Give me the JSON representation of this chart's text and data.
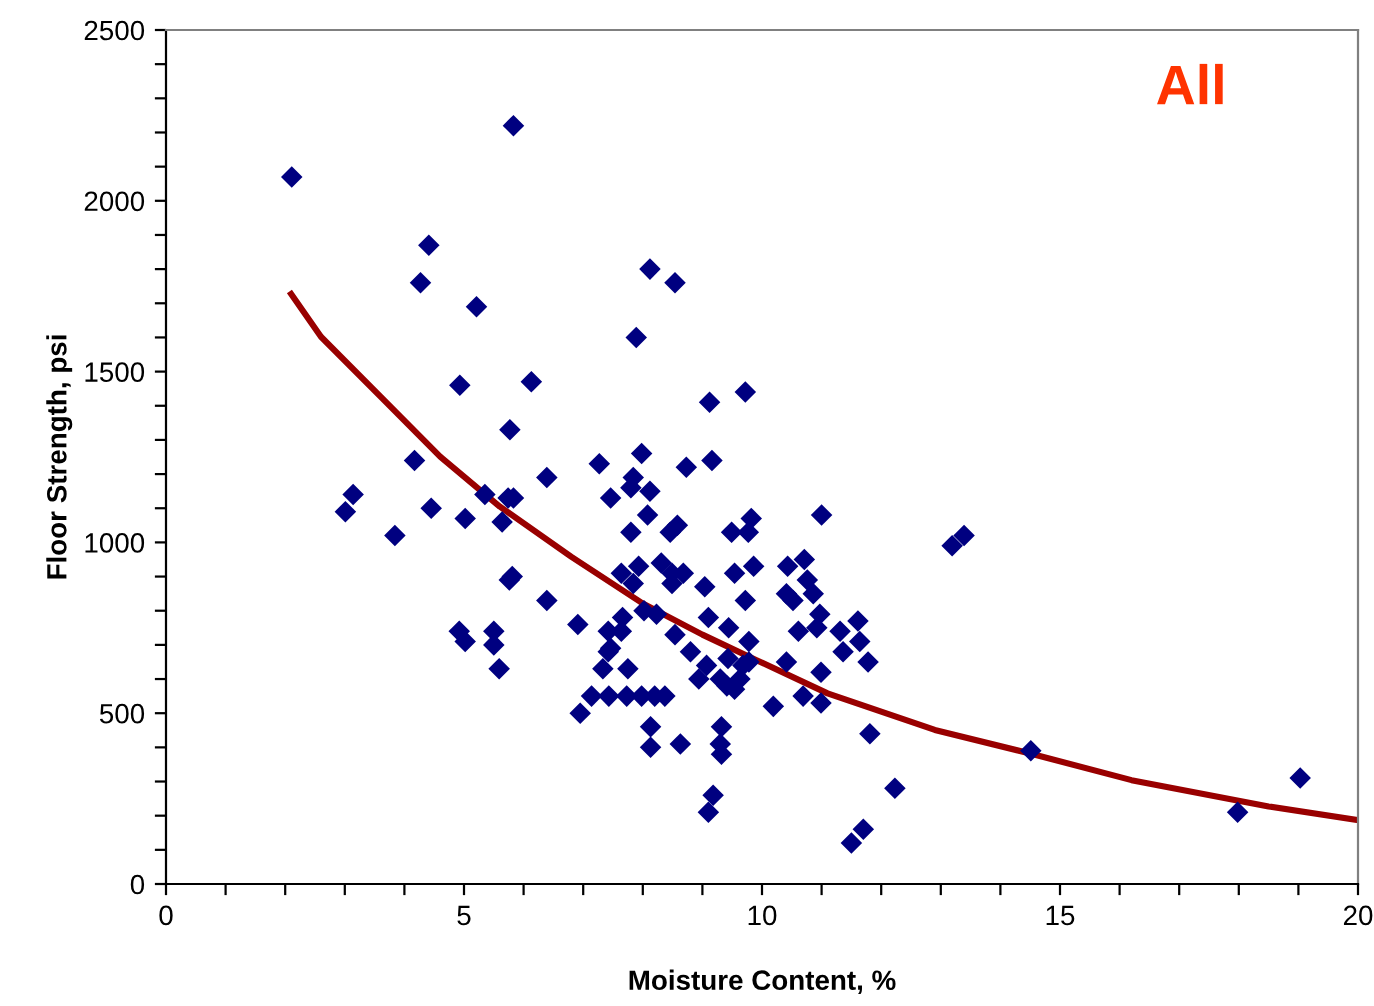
{
  "chart_data": {
    "type": "scatter",
    "title": "All",
    "xlabel": "Moisture Content, %",
    "ylabel": "Floor Strength, psi",
    "xlim": [
      0,
      20
    ],
    "ylim": [
      0,
      2500
    ],
    "xticks": [
      0,
      {
        "value": 1,
        "label": null
      },
      {
        "value": 2,
        "label": null
      },
      {
        "value": 3,
        "label": null
      },
      {
        "value": 4,
        "label": null
      },
      5,
      {
        "value": 6,
        "label": null
      },
      {
        "value": 7,
        "label": null
      },
      {
        "value": 8,
        "label": null
      },
      {
        "value": 9,
        "label": null
      },
      10,
      {
        "value": 11,
        "label": null
      },
      {
        "value": 12,
        "label": null
      },
      {
        "value": 13,
        "label": null
      },
      {
        "value": 14,
        "label": null
      },
      15,
      {
        "value": 16,
        "label": null
      },
      {
        "value": 17,
        "label": null
      },
      {
        "value": 18,
        "label": null
      },
      {
        "value": 19,
        "label": null
      },
      20
    ],
    "yticks": [
      0,
      {
        "value": 100,
        "label": null
      },
      {
        "value": 200,
        "label": null
      },
      {
        "value": 300,
        "label": null
      },
      {
        "value": 400,
        "label": null
      },
      500,
      {
        "value": 600,
        "label": null
      },
      {
        "value": 700,
        "label": null
      },
      {
        "value": 800,
        "label": null
      },
      {
        "value": 900,
        "label": null
      },
      1000,
      {
        "value": 1100,
        "label": null
      },
      {
        "value": 1200,
        "label": null
      },
      {
        "value": 1300,
        "label": null
      },
      {
        "value": 1400,
        "label": null
      },
      1500,
      {
        "value": 1600,
        "label": null
      },
      {
        "value": 1700,
        "label": null
      },
      {
        "value": 1800,
        "label": null
      },
      {
        "value": 1900,
        "label": null
      },
      2000,
      {
        "value": 2100,
        "label": null
      },
      {
        "value": 2200,
        "label": null
      },
      {
        "value": 2300,
        "label": null
      },
      {
        "value": 2400,
        "label": null
      },
      2500
    ],
    "grid": false,
    "legend": false,
    "series": [
      {
        "color": "#000080",
        "marker": "diamond",
        "x": [
          2.11,
          5.83,
          4.41,
          4.27,
          5.21,
          8.12,
          8.54,
          7.89,
          4.93,
          6.13,
          9.12,
          9.72,
          5.77,
          4.17,
          7.27,
          7.98,
          8.73,
          9.16,
          6.39,
          7.84,
          7.8,
          8.12,
          3.14,
          3.01,
          4.45,
          5.35,
          5.74,
          5.83,
          5.02,
          5.64,
          7.46,
          8.08,
          7.8,
          8.58,
          8.46,
          9.49,
          9.82,
          9.77,
          11.0,
          13.19,
          13.39,
          3.84,
          5.81,
          5.76,
          6.39,
          7.64,
          7.93,
          7.84,
          8.31,
          8.49,
          8.68,
          8.49,
          9.04,
          9.54,
          9.86,
          10.43,
          10.71,
          10.76,
          10.41,
          10.52,
          10.86,
          9.72,
          10.97,
          10.92,
          10.61,
          11.31,
          11.61,
          11.36,
          11.64,
          11.78,
          8.02,
          8.23,
          6.91,
          8.54,
          9.1,
          9.44,
          9.78,
          8.8,
          9.07,
          9.43,
          9.68,
          9.78,
          8.94,
          9.3,
          9.41,
          9.54,
          9.63,
          10.41,
          10.99,
          10.19,
          10.69,
          10.99,
          4.92,
          5.02,
          5.5,
          5.5,
          5.59,
          7.42,
          7.66,
          7.64,
          7.46,
          7.42,
          7.33,
          7.75,
          7.14,
          7.43,
          7.73,
          7.98,
          8.2,
          8.37,
          6.95,
          8.13,
          8.13,
          8.63,
          9.32,
          9.3,
          9.32,
          9.18,
          9.1,
          11.81,
          12.23,
          11.5,
          11.7,
          14.51,
          17.98,
          19.03
        ],
        "values": [
          2070,
          2220,
          1870,
          1760,
          1690,
          1800,
          1760,
          1600,
          1460,
          1470,
          1410,
          1440,
          1330,
          1240,
          1230,
          1260,
          1220,
          1240,
          1190,
          1190,
          1160,
          1150,
          1140,
          1090,
          1100,
          1140,
          1130,
          1130,
          1070,
          1060,
          1130,
          1080,
          1030,
          1050,
          1030,
          1030,
          1070,
          1030,
          1080,
          990,
          1020,
          1020,
          900,
          890,
          830,
          910,
          930,
          880,
          940,
          910,
          910,
          880,
          870,
          910,
          930,
          930,
          950,
          890,
          850,
          830,
          850,
          830,
          790,
          750,
          740,
          740,
          770,
          680,
          710,
          650,
          800,
          790,
          760,
          730,
          780,
          750,
          710,
          680,
          640,
          660,
          640,
          650,
          600,
          600,
          580,
          570,
          600,
          650,
          620,
          520,
          550,
          530,
          740,
          710,
          740,
          700,
          630,
          740,
          780,
          740,
          690,
          680,
          630,
          630,
          550,
          550,
          550,
          550,
          550,
          550,
          500,
          460,
          400,
          410,
          460,
          410,
          380,
          260,
          210,
          440,
          280,
          120,
          160,
          390,
          210,
          310
        ]
      },
      {
        "type": "line",
        "color": "#990000",
        "line_style": "solid",
        "marker": "none",
        "x": [
          2.1,
          2.6,
          3.6,
          4.6,
          5.6,
          6.8,
          8.0,
          9.0,
          9.9,
          11.1,
          12.9,
          14.5,
          16.2,
          18.5,
          20.0
        ],
        "values": [
          1727,
          1602,
          1427,
          1251,
          1105,
          958,
          821,
          730,
          656,
          558,
          451,
          382,
          304,
          227,
          187
        ]
      }
    ]
  }
}
